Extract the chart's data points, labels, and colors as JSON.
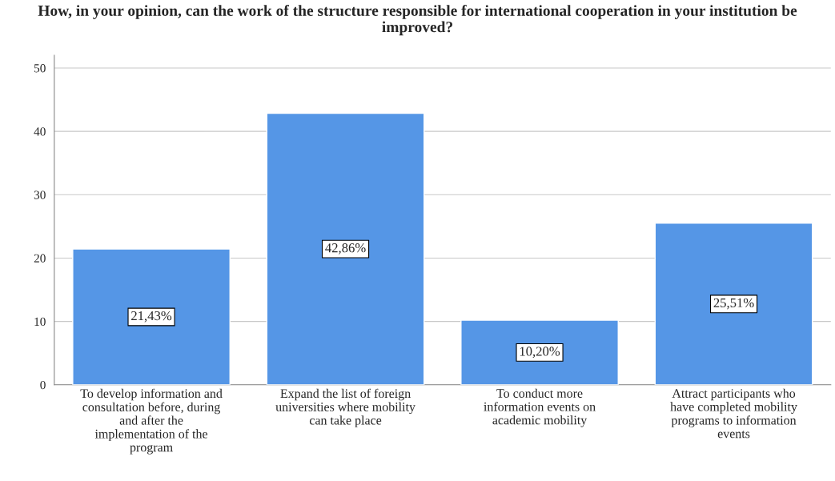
{
  "chart_data": {
    "type": "bar",
    "title": "How, in your opinion, can the work of the structure responsible for international cooperation in your institution be improved?",
    "categories": [
      "To develop information and\nconsultation before, during\nand after the\nimplementation of the\nprogram",
      "Expand the list of foreign\nuniversities where mobility\ncan take place",
      "To conduct more\ninformation events on\nacademic mobility",
      "Attract participants who\nhave completed mobility\nprograms to information\nevents"
    ],
    "values": [
      21.43,
      42.86,
      10.2,
      25.51
    ],
    "value_labels": [
      "21,43%",
      "42,86%",
      "10,20%",
      "25,51%"
    ],
    "color": "#5596e6",
    "ylim": [
      0,
      52
    ],
    "yticks": [
      0,
      10,
      20,
      30,
      40,
      50
    ],
    "grid": "y"
  }
}
